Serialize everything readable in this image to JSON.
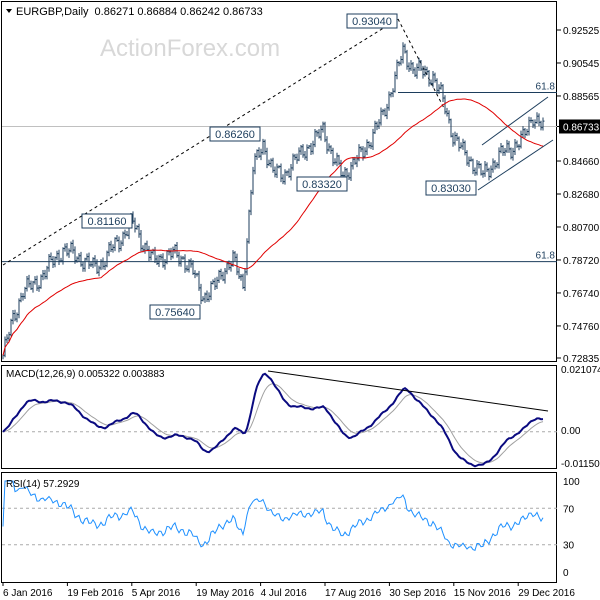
{
  "header": {
    "arrow_icon": "triangle-down-icon",
    "symbol": "EURGBP,Daily",
    "ohlc": "0.86271 0.86884 0.86242 0.86733"
  },
  "watermark": "ActionForex.com",
  "chart_data": [
    {
      "type": "ohlc-bar",
      "title": "EURGBP,Daily",
      "ylim": [
        0.72835,
        0.92525
      ],
      "y_ticks": [
        "0.92525",
        "0.90545",
        "0.88565",
        "0.86733",
        "0.84660",
        "0.82680",
        "0.80700",
        "0.78720",
        "0.76740",
        "0.74760",
        "0.72835"
      ],
      "y_tick_values": [
        0.92525,
        0.90545,
        0.88565,
        0.86733,
        0.8466,
        0.8268,
        0.807,
        0.7872,
        0.7674,
        0.7476,
        0.72835
      ],
      "current_price": 0.86733,
      "x_ticks": [
        "6 Jan 2016",
        "19 Feb 2016",
        "5 Apr 2016",
        "19 May 2016",
        "4 Jul 2016",
        "17 Aug 2016",
        "30 Sep 2016",
        "15 Nov 2016",
        "29 Dec 2016"
      ],
      "approx_weekly_closes": [
        0.73,
        0.752,
        0.769,
        0.772,
        0.778,
        0.787,
        0.793,
        0.791,
        0.787,
        0.783,
        0.786,
        0.795,
        0.802,
        0.81,
        0.797,
        0.787,
        0.789,
        0.791,
        0.788,
        0.78,
        0.765,
        0.77,
        0.781,
        0.787,
        0.772,
        0.842,
        0.857,
        0.84,
        0.838,
        0.845,
        0.853,
        0.857,
        0.866,
        0.848,
        0.838,
        0.845,
        0.852,
        0.863,
        0.874,
        0.893,
        0.912,
        0.902,
        0.9,
        0.897,
        0.883,
        0.862,
        0.852,
        0.845,
        0.838,
        0.845,
        0.852,
        0.855,
        0.86,
        0.874,
        0.867
      ],
      "annotations": [
        {
          "label": "0.93040",
          "price": 0.9304
        },
        {
          "label": "0.86260",
          "price": 0.8626
        },
        {
          "label": "0.83320",
          "price": 0.8332
        },
        {
          "label": "0.81160",
          "price": 0.8116
        },
        {
          "label": "0.75640",
          "price": 0.7564
        },
        {
          "label": "0.83030",
          "price": 0.8303
        }
      ],
      "fib_levels": [
        {
          "label": "61.8",
          "price": 0.8877
        },
        {
          "label": "61.8",
          "price": 0.7862
        }
      ],
      "moving_average_color": "#e00000",
      "bar_color": "#1c3d5c"
    },
    {
      "type": "line",
      "title": "MACD(12,26,9) 0.005322 0.003883",
      "ylim": [
        -0.011507,
        0.021074
      ],
      "y_ticks": [
        "0.021074",
        "0.00",
        "-0.011507"
      ],
      "series": [
        {
          "name": "MACD",
          "color": "#0a0a80"
        },
        {
          "name": "Signal",
          "color": "#a0a0a0"
        }
      ]
    },
    {
      "type": "line",
      "title": "RSI(14) 57.2929",
      "ylim": [
        0,
        100
      ],
      "y_ticks": [
        "100",
        "70",
        "30",
        "0"
      ],
      "levels": [
        70,
        30
      ],
      "series": [
        {
          "name": "RSI",
          "color": "#1e90ff"
        }
      ]
    }
  ]
}
